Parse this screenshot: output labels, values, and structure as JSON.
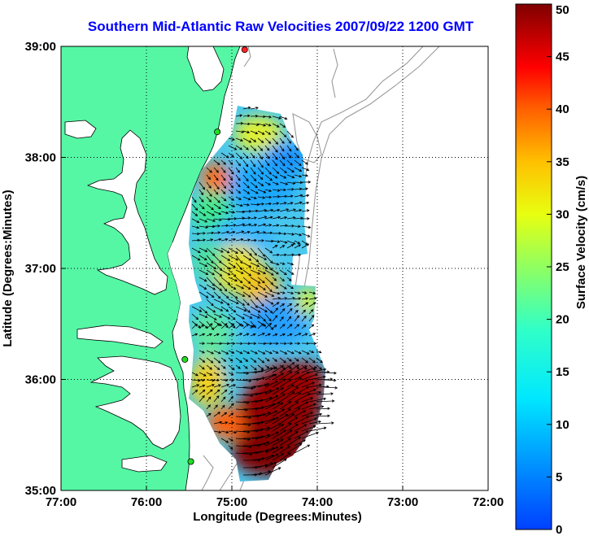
{
  "title": "Southern Mid-Atlantic Raw Velocities 2007/09/22 1200 GMT",
  "xlabel": "Longitude (Degrees:Minutes)",
  "ylabel": "Latitude (Degrees:Minutes)",
  "colorbar_label": "Surface Velocity (cm/s)",
  "x_ticks": [
    {
      "value": -77,
      "label": "77:00"
    },
    {
      "value": -76,
      "label": "76:00"
    },
    {
      "value": -75,
      "label": "75:00"
    },
    {
      "value": -74,
      "label": "74:00"
    },
    {
      "value": -73,
      "label": "73:00"
    },
    {
      "value": -72,
      "label": "72:00"
    }
  ],
  "y_ticks": [
    {
      "value": 39,
      "label": "39:00"
    },
    {
      "value": 38,
      "label": "38:00"
    },
    {
      "value": 37,
      "label": "37:00"
    },
    {
      "value": 36,
      "label": "36:00"
    },
    {
      "value": 35,
      "label": "35:00"
    }
  ],
  "colorbar_ticks": [
    "0",
    "5",
    "10",
    "15",
    "20",
    "25",
    "30",
    "35",
    "40",
    "45",
    "50"
  ],
  "colors": {
    "land": "#55f7a5",
    "title": "#0000ff",
    "grid": "#000000",
    "bathymetry": "#9a9a9a",
    "station_green": "#22dd22",
    "station_red": "#ff2222"
  },
  "chart_data": {
    "type": "heatmap",
    "title": "Southern Mid-Atlantic Raw Velocities 2007/09/22 1200 GMT",
    "xlabel": "Longitude (Degrees:Minutes)",
    "ylabel": "Latitude (Degrees:Minutes)",
    "xlim": [
      -77,
      -72
    ],
    "ylim": [
      35,
      39
    ],
    "grid": true,
    "colorbar": {
      "label": "Surface Velocity (cm/s)",
      "range": [
        0,
        50
      ],
      "colormap": "jet",
      "position": "right"
    },
    "stations": [
      {
        "lon": -74.85,
        "lat": 38.97,
        "color": "red"
      },
      {
        "lon": -75.17,
        "lat": 38.23,
        "color": "green"
      },
      {
        "lon": -75.55,
        "lat": 36.18,
        "color": "green"
      },
      {
        "lon": -75.48,
        "lat": 35.26,
        "color": "green"
      }
    ],
    "regions": [
      {
        "lon_range": [
          -75.0,
          -74.55
        ],
        "lat_range": [
          37.95,
          38.45
        ],
        "speed": 10
      },
      {
        "lon_range": [
          -75.55,
          -74.9
        ],
        "lat_range": [
          37.5,
          38.0
        ],
        "speed": 12
      },
      {
        "lon_range": [
          -74.85,
          -74.2
        ],
        "lat_range": [
          37.3,
          37.95
        ],
        "speed": 8
      },
      {
        "lon_range": [
          -75.3,
          -74.6
        ],
        "lat_range": [
          36.75,
          37.3
        ],
        "speed": 27
      },
      {
        "lon_range": [
          -75.6,
          -75.3
        ],
        "lat_range": [
          36.3,
          36.8
        ],
        "speed": 16
      },
      {
        "lon_range": [
          -74.9,
          -74.2
        ],
        "lat_range": [
          36.3,
          36.8
        ],
        "speed": 11
      },
      {
        "lon_range": [
          -75.45,
          -75.1
        ],
        "lat_range": [
          35.6,
          36.15
        ],
        "speed": 25
      },
      {
        "lon_range": [
          -75.0,
          -74.0
        ],
        "lat_range": [
          35.1,
          36.2
        ],
        "speed": 50
      }
    ]
  }
}
